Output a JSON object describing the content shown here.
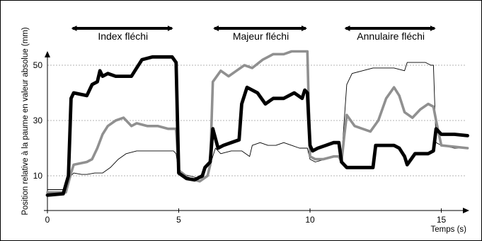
{
  "chart_data": {
    "type": "line",
    "title": "",
    "xlabel": "Temps (s)",
    "ylabel": "Position relative à la paume en valeur absolue (mm)",
    "xlim": [
      0,
      16
    ],
    "ylim": [
      0,
      56
    ],
    "x_ticks": [
      "0",
      "5",
      "10",
      "15"
    ],
    "y_ticks": [
      "10",
      "30",
      "50"
    ],
    "grid": "horizontal dashed at y = 10, 30, 50",
    "annotations": [
      {
        "label": "Index fléchi",
        "x_start": 0.8,
        "x_end": 4.9
      },
      {
        "label": "Majeur fléchi",
        "x_start": 6.2,
        "x_end": 10.0
      },
      {
        "label": "Annulaire fléchi",
        "x_start": 11.2,
        "x_end": 14.9
      }
    ],
    "series": [
      {
        "color": "#000000",
        "style": "thick",
        "x": [
          0,
          0.6,
          0.8,
          0.9,
          1.0,
          1.5,
          1.7,
          1.9,
          2.0,
          2.1,
          2.3,
          2.6,
          2.9,
          3.2,
          3.4,
          3.6,
          4.0,
          4.5,
          4.75,
          4.9,
          5.0,
          5.3,
          5.6,
          5.9,
          6.0,
          6.2,
          6.3,
          6.5,
          6.7,
          7.0,
          7.3,
          7.4,
          7.6,
          7.8,
          8.0,
          8.3,
          8.6,
          9.0,
          9.4,
          9.7,
          9.8,
          9.9,
          10.0,
          10.1,
          10.3,
          10.6,
          10.9,
          11.1,
          11.2,
          11.4,
          11.5,
          12.0,
          12.4,
          12.5,
          12.8,
          13.2,
          13.4,
          13.6,
          13.7,
          14.0,
          14.5,
          14.7,
          14.8,
          15.0,
          15.5,
          16.0
        ],
        "y": [
          3,
          3.5,
          10,
          38,
          40,
          39,
          43,
          44,
          48,
          46,
          47,
          46,
          46,
          46,
          49,
          52,
          53,
          53,
          53,
          51,
          11,
          9,
          8.5,
          10,
          13,
          15,
          27,
          20,
          21,
          22,
          23,
          36,
          42,
          41,
          40,
          36,
          38,
          38,
          40,
          38,
          41,
          40,
          21,
          19,
          20,
          21,
          22,
          22,
          15,
          13,
          13,
          13,
          13,
          21,
          21,
          21,
          20,
          17,
          14,
          18,
          18,
          19,
          27,
          25,
          25,
          24.5
        ]
      },
      {
        "color": "#909090",
        "style": "medium",
        "x": [
          0,
          0.7,
          0.9,
          1.0,
          1.5,
          1.7,
          1.9,
          2.1,
          2.3,
          2.6,
          2.9,
          3.2,
          3.4,
          3.8,
          4.2,
          4.6,
          4.9,
          5.0,
          5.4,
          5.8,
          6.1,
          6.2,
          6.3,
          6.6,
          6.9,
          7.2,
          7.5,
          7.8,
          8.2,
          8.6,
          9.0,
          9.3,
          9.6,
          9.9,
          10.0,
          10.2,
          10.5,
          10.9,
          11.1,
          11.2,
          11.3,
          11.4,
          11.7,
          12.0,
          12.3,
          12.6,
          12.9,
          13.2,
          13.4,
          13.6,
          13.9,
          14.2,
          14.5,
          14.7,
          14.8,
          15.0,
          15.5,
          16.0
        ],
        "y": [
          4,
          4,
          11,
          14,
          15,
          16,
          20,
          25,
          28,
          30,
          31,
          28,
          29,
          28,
          28,
          27,
          27,
          12,
          9,
          8,
          10,
          14,
          44,
          48,
          46,
          48,
          50,
          49,
          52,
          54,
          54,
          55,
          55,
          55,
          17,
          16,
          16,
          17,
          17,
          15,
          24,
          32,
          28,
          27,
          26,
          30,
          38,
          42,
          39,
          33,
          31,
          34,
          36,
          35,
          30,
          21,
          20.5,
          20
        ]
      },
      {
        "color": "#000000",
        "style": "thin",
        "x": [
          0,
          0.7,
          0.9,
          1.0,
          1.3,
          1.5,
          1.8,
          2.1,
          2.4,
          2.7,
          3.0,
          3.4,
          3.8,
          4.2,
          4.5,
          4.8,
          4.9,
          5.0,
          5.4,
          5.8,
          6.1,
          6.2,
          6.4,
          6.6,
          7.0,
          7.4,
          7.7,
          7.8,
          8.1,
          8.4,
          8.7,
          9.0,
          9.3,
          9.6,
          9.9,
          10.0,
          10.2,
          10.6,
          11.0,
          11.2,
          11.4,
          11.6,
          12.0,
          12.4,
          12.8,
          13.2,
          13.6,
          13.7,
          14.0,
          14.4,
          14.6,
          14.7,
          14.8,
          15.0,
          15.5,
          16.0
        ],
        "y": [
          5,
          5,
          10,
          11,
          10.5,
          10.5,
          11,
          11,
          13,
          16,
          18,
          19,
          19,
          19,
          19,
          19,
          18,
          11,
          10,
          9,
          10,
          14,
          20,
          18,
          19,
          19,
          17,
          21,
          22,
          21,
          21,
          22,
          21,
          20,
          20,
          16,
          15,
          16,
          17,
          16,
          43,
          47,
          48,
          49,
          49,
          49,
          48,
          51,
          51,
          51,
          50,
          50,
          22,
          21,
          20,
          20
        ]
      }
    ]
  }
}
